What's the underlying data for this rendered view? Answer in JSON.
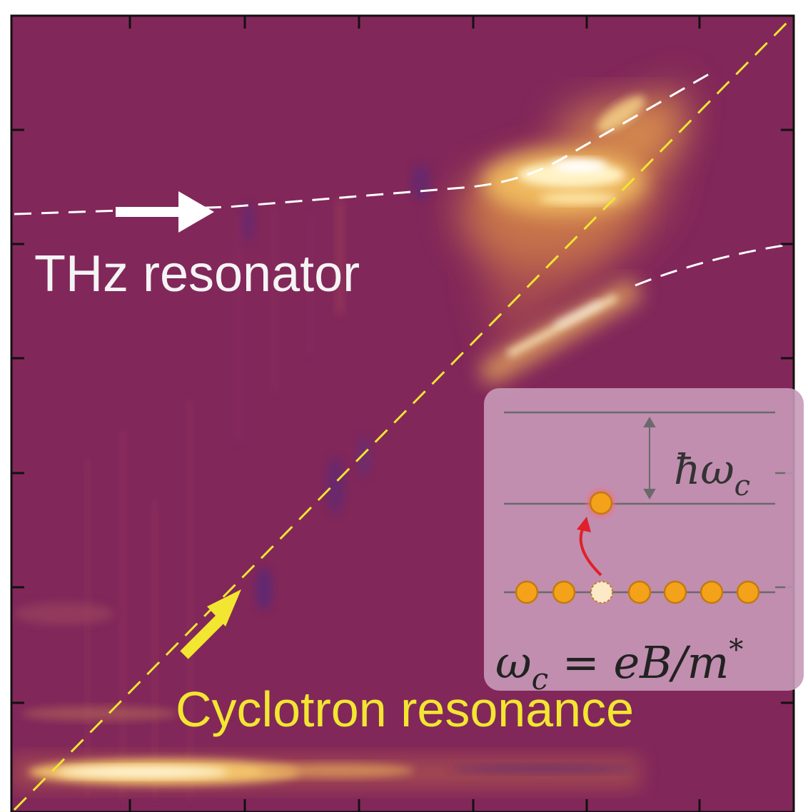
{
  "chart_data": {
    "type": "heatmap",
    "title": "",
    "xlabel": "",
    "ylabel": "",
    "colormap": "inferno-like (purple background, yellow-white peaks)",
    "grid": false,
    "colors": {
      "background": "#82275a",
      "peak": "#fff6c8",
      "resonator_line": "#ffffff",
      "cyclotron_line": "#f2e630",
      "inset_box": "#c89ab8"
    },
    "features": [
      {
        "name": "THz resonator",
        "kind": "dashed-line",
        "color": "#ffffff"
      },
      {
        "name": "Cyclotron resonance",
        "kind": "dashed-line",
        "color": "#f2e630"
      },
      {
        "name": "upper polariton branch",
        "kind": "dashed-line",
        "color": "#ffffff"
      },
      {
        "name": "lower polariton branch",
        "kind": "dashed-line",
        "color": "#ffffff"
      }
    ]
  },
  "annotations": {
    "resonator_label": "THz resonator",
    "cyclotron_label": "Cyclotron resonance",
    "resonator_arrow_icon": "right-arrow-icon",
    "cyclotron_arrow_icon": "up-right-arrow-icon"
  },
  "inset": {
    "level_spacing_label": "ħω",
    "level_spacing_sub": "c",
    "formula_left": "ω",
    "formula_sub": "c",
    "formula_right": " = eB/m",
    "formula_sup": "*",
    "electron_count_lower": 7,
    "icons": [
      "energy-level-diagram-icon",
      "excitation-arrow-icon",
      "electron-icon"
    ]
  }
}
